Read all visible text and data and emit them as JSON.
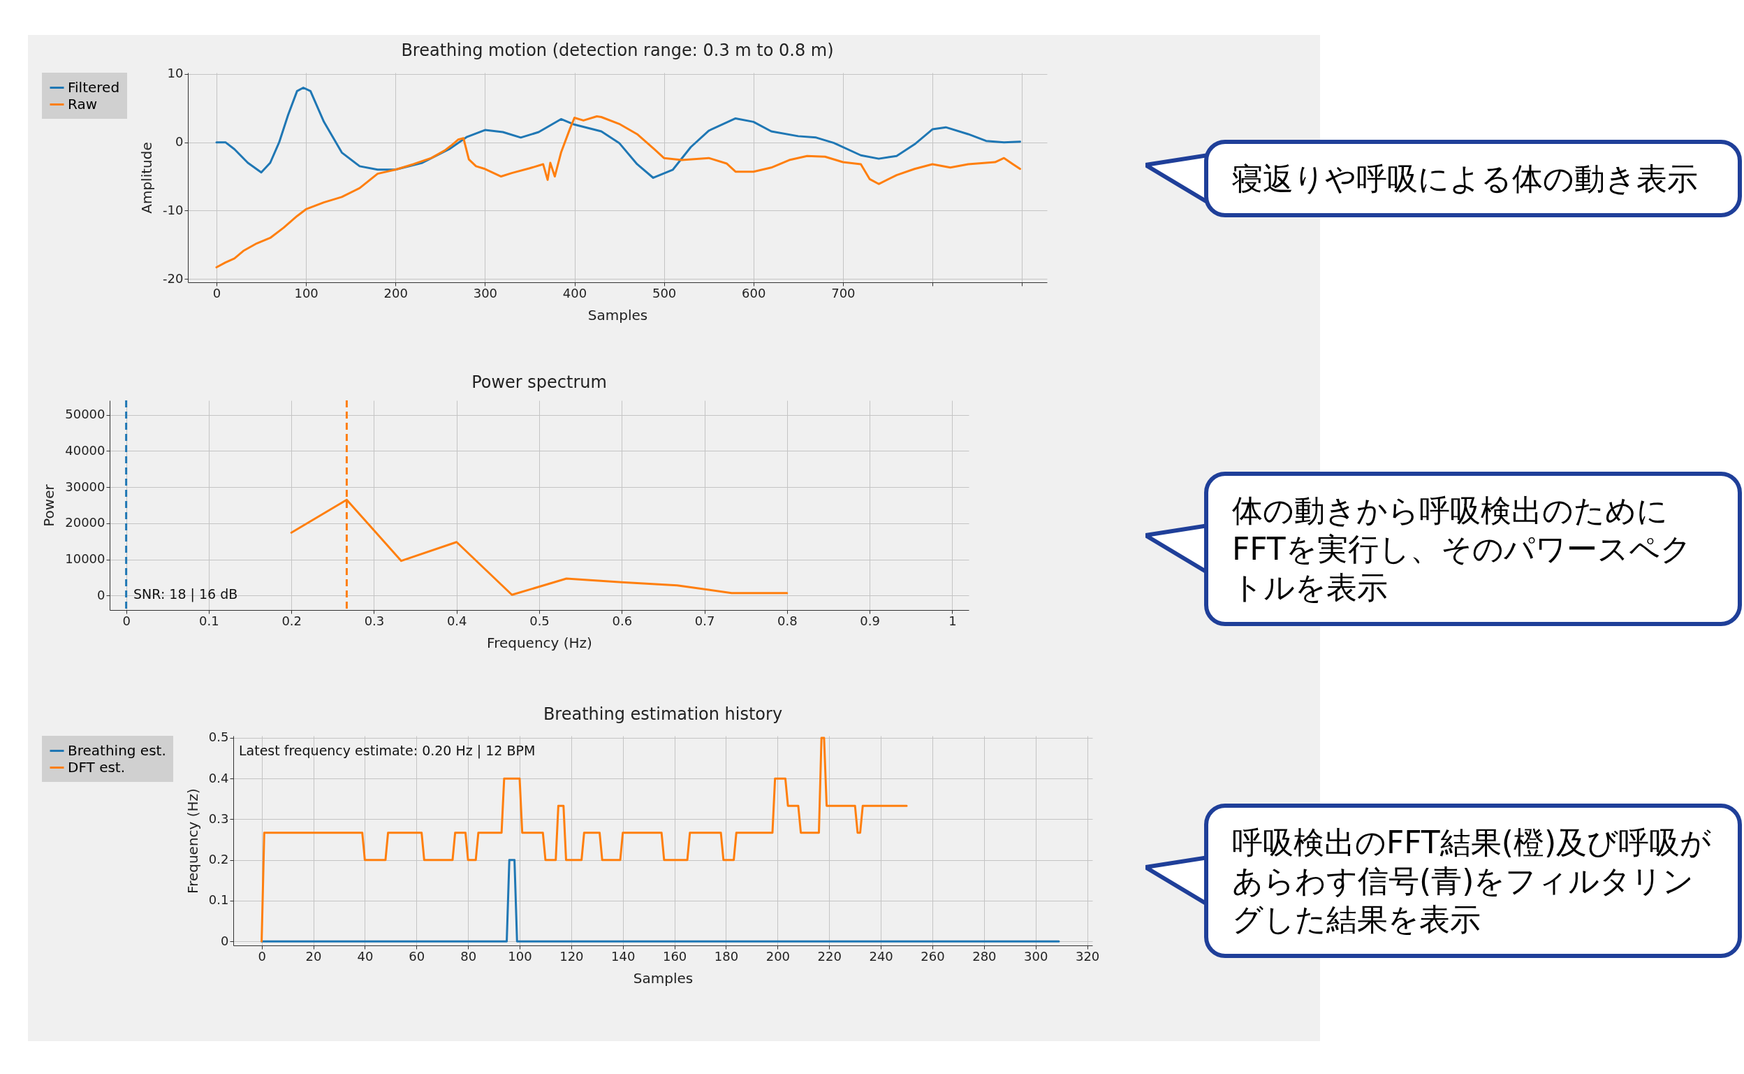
{
  "chart_data": [
    {
      "type": "line",
      "title": "Breathing motion (detection range: 0.3 m to 0.8 m)",
      "xlabel": "Samples",
      "ylabel": "Amplitude",
      "xlim": [
        -32,
        928
      ],
      "ylim": [
        -20.5,
        10.2
      ],
      "xticks": [
        0,
        100,
        200,
        300,
        400,
        500,
        600,
        700,
        {
          "value": 800,
          "label": null
        },
        {
          "value": 900,
          "label": null
        }
      ],
      "yticks": [
        -20,
        -10,
        0,
        10
      ],
      "grid": true,
      "legend": "left",
      "line_style": "solid",
      "series": [
        {
          "name": "Filtered",
          "color": "#1f77b4",
          "x": [
            0,
            10,
            20,
            35,
            50,
            60,
            70,
            80,
            90,
            97,
            105,
            120,
            140,
            160,
            180,
            200,
            230,
            260,
            280,
            300,
            320,
            340,
            360,
            385,
            400,
            430,
            450,
            470,
            488,
            510,
            530,
            550,
            580,
            600,
            620,
            650,
            670,
            690,
            720,
            740,
            760,
            780,
            800,
            815,
            840,
            860,
            880,
            898
          ],
          "values": [
            0,
            0,
            -1,
            -3,
            -4.4,
            -3,
            0,
            4,
            7.5,
            8,
            7.5,
            3,
            -1.5,
            -3.5,
            -4,
            -4,
            -3,
            -1,
            0.8,
            1.8,
            1.5,
            0.7,
            1.5,
            3.4,
            2.6,
            1.6,
            -0.1,
            -3.2,
            -5.2,
            -4,
            -0.7,
            1.7,
            3.5,
            3,
            1.6,
            0.9,
            0.7,
            -0.1,
            -1.9,
            -2.4,
            -2,
            -0.3,
            1.9,
            2.2,
            1.2,
            0.2,
            0,
            0.1
          ]
        },
        {
          "name": "Raw",
          "color": "#ff7f0e",
          "x": [
            0,
            10,
            20,
            30,
            45,
            60,
            75,
            90,
            100,
            120,
            140,
            160,
            180,
            200,
            220,
            240,
            255,
            262,
            270,
            276,
            282,
            290,
            300,
            318,
            330,
            350,
            365,
            370,
            373,
            378,
            385,
            395,
            400,
            410,
            425,
            430,
            450,
            470,
            490,
            500,
            520,
            550,
            570,
            580,
            600,
            620,
            640,
            660,
            680,
            700,
            720,
            730,
            740,
            760,
            780,
            800,
            820,
            840,
            870,
            880,
            890,
            898
          ],
          "values": [
            -18.3,
            -17.6,
            -17,
            -15.9,
            -14.8,
            -14,
            -12.5,
            -10.8,
            -9.8,
            -8.8,
            -8,
            -6.7,
            -4.6,
            -4,
            -3.2,
            -2.3,
            -1.2,
            -0.5,
            0.4,
            0.6,
            -2.5,
            -3.5,
            -3.9,
            -5,
            -4.5,
            -3.8,
            -3.2,
            -5.5,
            -3,
            -5,
            -1.5,
            2,
            3.6,
            3.2,
            3.8,
            3.7,
            2.7,
            1.2,
            -1.1,
            -2.3,
            -2.6,
            -2.3,
            -3.1,
            -4.3,
            -4.3,
            -3.7,
            -2.6,
            -2,
            -2.1,
            -2.9,
            -3.2,
            -5.4,
            -6.1,
            -4.8,
            -3.9,
            -3.2,
            -3.7,
            -3.2,
            -2.9,
            -2.3,
            -3.2,
            -3.9
          ]
        }
      ],
      "annotations": [
        "寝返りや呼吸による体の動き表示"
      ]
    },
    {
      "type": "line",
      "title": "Power spectrum",
      "xlabel": "Frequency (Hz)",
      "ylabel": "Power",
      "xlim": [
        -0.02,
        1.02
      ],
      "ylim": [
        -4000,
        54000
      ],
      "xticks": [
        0,
        0.1,
        0.2,
        0.3,
        0.4,
        0.5,
        0.6,
        0.7,
        0.8,
        0.9,
        1
      ],
      "yticks": [
        0,
        10000,
        20000,
        30000,
        40000,
        50000
      ],
      "grid": true,
      "line_style": "solid",
      "series": [
        {
          "color": "#ff7f0e",
          "x": [
            0.2,
            0.267,
            0.333,
            0.4,
            0.467,
            0.533,
            0.6,
            0.667,
            0.733,
            0.8
          ],
          "values": [
            17400,
            26500,
            9600,
            14800,
            200,
            4700,
            3700,
            2800,
            700,
            700
          ]
        }
      ],
      "ref_lines": [
        {
          "axis": "x",
          "value": 0,
          "color": "#1f77b4",
          "line_style": "dashed"
        },
        {
          "axis": "x",
          "value": 0.267,
          "color": "#ff7f0e",
          "line_style": "dashed"
        }
      ],
      "annotations": [
        "SNR: 18 | 16 dB",
        "体の動きから呼吸検出のためにFFTを実行し、そのパワースペクトルを表示"
      ]
    },
    {
      "type": "line",
      "title": "Breathing estimation history",
      "xlabel": "Samples",
      "ylabel": "Frequency (Hz)",
      "xlim": [
        -11,
        322
      ],
      "ylim": [
        -0.01,
        0.505
      ],
      "xticks": [
        0,
        20,
        40,
        60,
        80,
        100,
        120,
        140,
        160,
        180,
        200,
        220,
        240,
        260,
        280,
        300,
        320
      ],
      "yticks": [
        0,
        0.1,
        0.2,
        0.3,
        0.4,
        0.5
      ],
      "grid": true,
      "legend": "left",
      "line_style": "solid",
      "series": [
        {
          "name": "Breathing est.",
          "color": "#1f77b4",
          "x": [
            0,
            95,
            96,
            98,
            99,
            309
          ],
          "values": [
            0,
            0,
            0.2,
            0.2,
            0,
            0
          ]
        },
        {
          "name": "DFT est.",
          "color": "#ff7f0e",
          "x": [
            0,
            1,
            39,
            40,
            48,
            49,
            62,
            63,
            74,
            75,
            79,
            80,
            83,
            84,
            93,
            94,
            100,
            101,
            109,
            110,
            114,
            115,
            117,
            118,
            124,
            125,
            131,
            132,
            139,
            140,
            155,
            156,
            165,
            166,
            178,
            179,
            183,
            184,
            198,
            199,
            203,
            204,
            208,
            209,
            216,
            217,
            218,
            219,
            230,
            231,
            232,
            233,
            250
          ],
          "values": [
            0,
            0.267,
            0.267,
            0.2,
            0.2,
            0.267,
            0.267,
            0.2,
            0.2,
            0.267,
            0.267,
            0.2,
            0.2,
            0.267,
            0.267,
            0.4,
            0.4,
            0.267,
            0.267,
            0.2,
            0.2,
            0.333,
            0.333,
            0.2,
            0.2,
            0.267,
            0.267,
            0.2,
            0.2,
            0.267,
            0.267,
            0.2,
            0.2,
            0.267,
            0.267,
            0.2,
            0.2,
            0.267,
            0.267,
            0.4,
            0.4,
            0.333,
            0.333,
            0.267,
            0.267,
            0.5,
            0.5,
            0.333,
            0.333,
            0.267,
            0.267,
            0.333,
            0.333
          ]
        }
      ],
      "annotations": [
        "Latest frequency estimate: 0.20 Hz | 12 BPM",
        "呼吸検出のFFT結果(橙)及び呼吸があらわす信号(青)をフィルタリングした結果を表示"
      ]
    }
  ]
}
